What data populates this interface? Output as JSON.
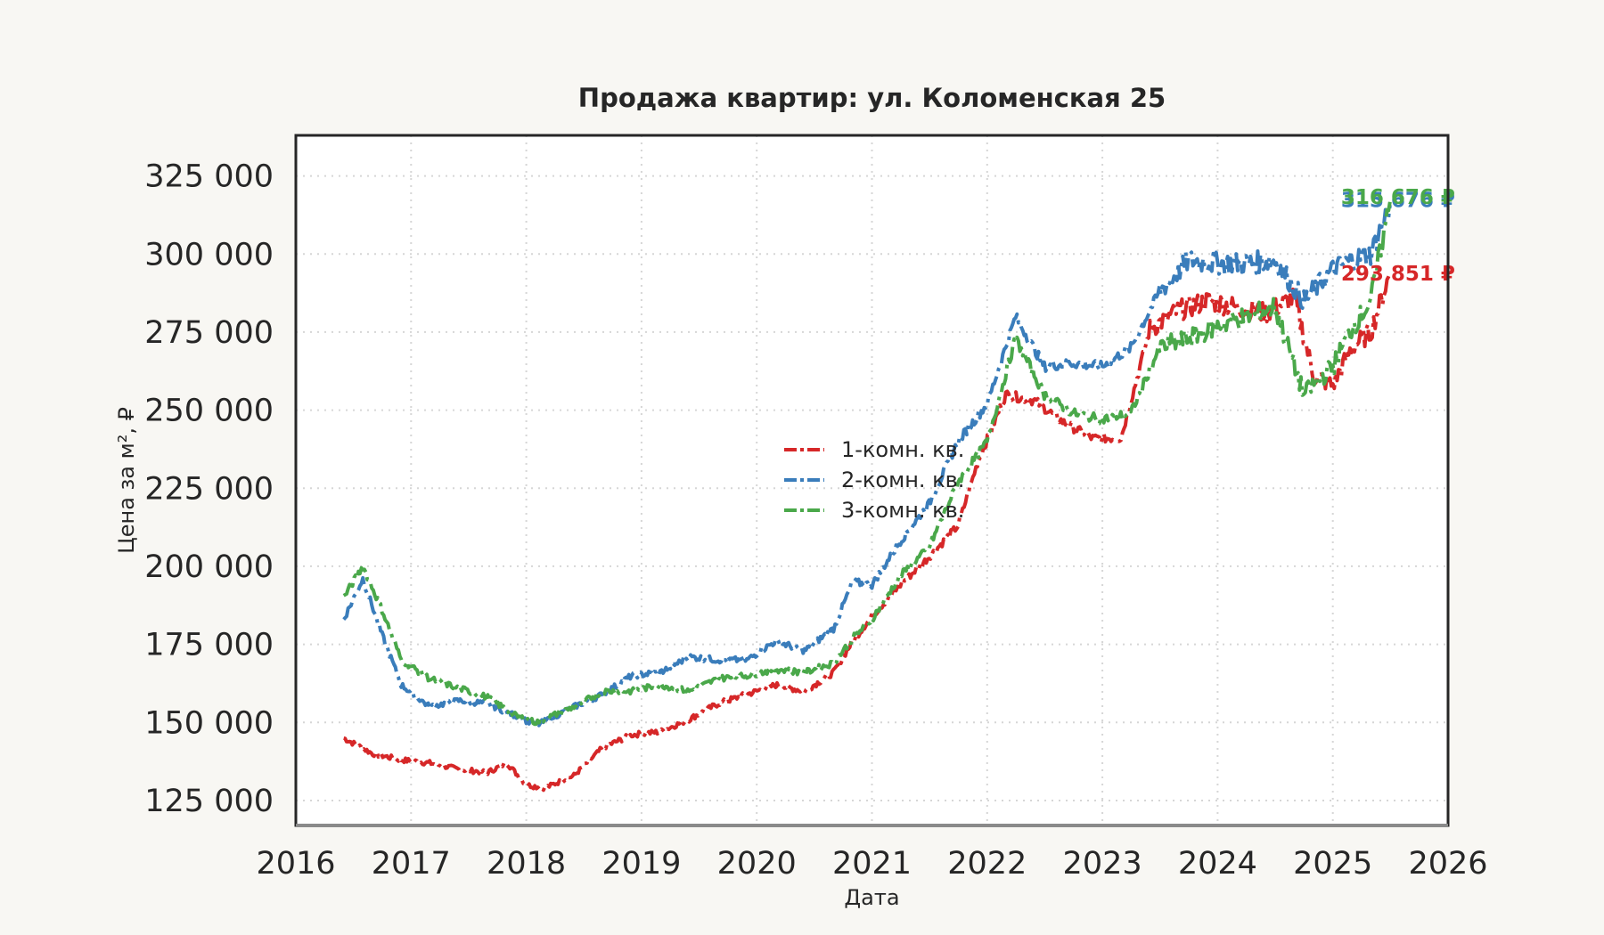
{
  "chart_data": {
    "type": "line",
    "title": "Продажа квартир: ул. Коломенская 25",
    "xlabel": "Дата",
    "ylabel": "Цена за м², ₽",
    "x_range": [
      "2016-01-01",
      "2026-01-01"
    ],
    "ylim": [
      117000,
      338000
    ],
    "x_ticks": [
      2016,
      2017,
      2018,
      2019,
      2020,
      2021,
      2022,
      2023,
      2024,
      2025,
      2026
    ],
    "y_ticks": [
      125000,
      150000,
      175000,
      200000,
      225000,
      250000,
      275000,
      300000,
      325000
    ],
    "y_tick_labels": [
      "125 000",
      "150 000",
      "175 000",
      "200 000",
      "225 000",
      "250 000",
      "275 000",
      "300 000",
      "325 000"
    ],
    "grid": true,
    "legend_position": "center",
    "series": [
      {
        "name": "1-комн. кв.",
        "color": "#d62728",
        "end_label": "293 851 ₽",
        "points": [
          [
            "2016-06-01",
            145000
          ],
          [
            "2016-09-01",
            140000
          ],
          [
            "2016-12-01",
            138000
          ],
          [
            "2017-03-01",
            137000
          ],
          [
            "2017-06-01",
            135000
          ],
          [
            "2017-09-01",
            134000
          ],
          [
            "2017-11-01",
            137000
          ],
          [
            "2018-01-01",
            130000
          ],
          [
            "2018-03-01",
            129000
          ],
          [
            "2018-06-01",
            133000
          ],
          [
            "2018-09-01",
            142000
          ],
          [
            "2018-12-01",
            146000
          ],
          [
            "2019-03-01",
            147000
          ],
          [
            "2019-06-01",
            151000
          ],
          [
            "2019-09-01",
            156000
          ],
          [
            "2019-12-01",
            159000
          ],
          [
            "2020-03-01",
            162000
          ],
          [
            "2020-06-01",
            160000
          ],
          [
            "2020-09-01",
            166000
          ],
          [
            "2020-11-01",
            176000
          ],
          [
            "2021-01-01",
            184000
          ],
          [
            "2021-04-01",
            194000
          ],
          [
            "2021-07-01",
            203000
          ],
          [
            "2021-10-01",
            213000
          ],
          [
            "2021-12-01",
            233000
          ],
          [
            "2022-03-01",
            255000
          ],
          [
            "2022-06-01",
            253000
          ],
          [
            "2022-09-01",
            246000
          ],
          [
            "2022-12-01",
            241000
          ],
          [
            "2023-03-01",
            241000
          ],
          [
            "2023-06-01",
            276000
          ],
          [
            "2023-09-01",
            282000
          ],
          [
            "2023-12-01",
            285000
          ],
          [
            "2024-03-01",
            283000
          ],
          [
            "2024-06-01",
            281000
          ],
          [
            "2024-09-01",
            286000
          ],
          [
            "2024-11-01",
            261000
          ],
          [
            "2025-01-01",
            258000
          ],
          [
            "2025-03-01",
            270000
          ],
          [
            "2025-05-01",
            275000
          ],
          [
            "2025-07-01",
            293851
          ]
        ]
      },
      {
        "name": "2-комн. кв.",
        "color": "#3a7dbb",
        "end_label": "315 676 ₽",
        "points": [
          [
            "2016-06-01",
            183000
          ],
          [
            "2016-08-01",
            196000
          ],
          [
            "2016-10-01",
            178000
          ],
          [
            "2016-12-01",
            162000
          ],
          [
            "2017-03-01",
            155000
          ],
          [
            "2017-06-01",
            157000
          ],
          [
            "2017-09-01",
            156000
          ],
          [
            "2017-12-01",
            152000
          ],
          [
            "2018-02-01",
            149000
          ],
          [
            "2018-06-01",
            155000
          ],
          [
            "2018-09-01",
            159000
          ],
          [
            "2018-12-01",
            165000
          ],
          [
            "2019-03-01",
            166000
          ],
          [
            "2019-06-01",
            171000
          ],
          [
            "2019-09-01",
            170000
          ],
          [
            "2019-12-01",
            170000
          ],
          [
            "2020-03-01",
            176000
          ],
          [
            "2020-06-01",
            173000
          ],
          [
            "2020-09-01",
            180000
          ],
          [
            "2020-11-01",
            195000
          ],
          [
            "2021-01-01",
            194000
          ],
          [
            "2021-04-01",
            208000
          ],
          [
            "2021-07-01",
            220000
          ],
          [
            "2021-10-01",
            240000
          ],
          [
            "2022-01-01",
            252000
          ],
          [
            "2022-04-01",
            280000
          ],
          [
            "2022-07-01",
            264000
          ],
          [
            "2022-10-01",
            265000
          ],
          [
            "2023-01-01",
            264000
          ],
          [
            "2023-04-01",
            270000
          ],
          [
            "2023-07-01",
            288000
          ],
          [
            "2023-10-01",
            298000
          ],
          [
            "2024-01-01",
            297000
          ],
          [
            "2024-04-01",
            297000
          ],
          [
            "2024-07-01",
            298000
          ],
          [
            "2024-10-01",
            285000
          ],
          [
            "2025-01-01",
            295000
          ],
          [
            "2025-03-01",
            298000
          ],
          [
            "2025-05-01",
            300000
          ],
          [
            "2025-07-01",
            315676
          ]
        ]
      },
      {
        "name": "3-комн. кв.",
        "color": "#4aa84a",
        "end_label": "316 676 ₽",
        "points": [
          [
            "2016-06-01",
            190000
          ],
          [
            "2016-08-01",
            200000
          ],
          [
            "2016-10-01",
            186000
          ],
          [
            "2016-12-01",
            170000
          ],
          [
            "2017-03-01",
            164000
          ],
          [
            "2017-06-01",
            161000
          ],
          [
            "2017-09-01",
            158000
          ],
          [
            "2017-12-01",
            152000
          ],
          [
            "2018-02-01",
            150000
          ],
          [
            "2018-06-01",
            155000
          ],
          [
            "2018-09-01",
            160000
          ],
          [
            "2018-12-01",
            160000
          ],
          [
            "2019-03-01",
            162000
          ],
          [
            "2019-06-01",
            160000
          ],
          [
            "2019-09-01",
            164000
          ],
          [
            "2019-12-01",
            165000
          ],
          [
            "2020-03-01",
            167000
          ],
          [
            "2020-06-01",
            166000
          ],
          [
            "2020-09-01",
            169000
          ],
          [
            "2020-11-01",
            177000
          ],
          [
            "2021-01-01",
            183000
          ],
          [
            "2021-04-01",
            197000
          ],
          [
            "2021-07-01",
            206000
          ],
          [
            "2021-10-01",
            227000
          ],
          [
            "2022-01-01",
            240000
          ],
          [
            "2022-04-01",
            273000
          ],
          [
            "2022-07-01",
            255000
          ],
          [
            "2022-10-01",
            249000
          ],
          [
            "2023-01-01",
            247000
          ],
          [
            "2023-04-01",
            249000
          ],
          [
            "2023-07-01",
            270000
          ],
          [
            "2023-10-01",
            273000
          ],
          [
            "2024-01-01",
            277000
          ],
          [
            "2024-04-01",
            280000
          ],
          [
            "2024-07-01",
            283000
          ],
          [
            "2024-10-01",
            255000
          ],
          [
            "2025-01-01",
            264000
          ],
          [
            "2025-03-01",
            276000
          ],
          [
            "2025-05-01",
            285000
          ],
          [
            "2025-07-01",
            316676
          ]
        ]
      }
    ]
  }
}
